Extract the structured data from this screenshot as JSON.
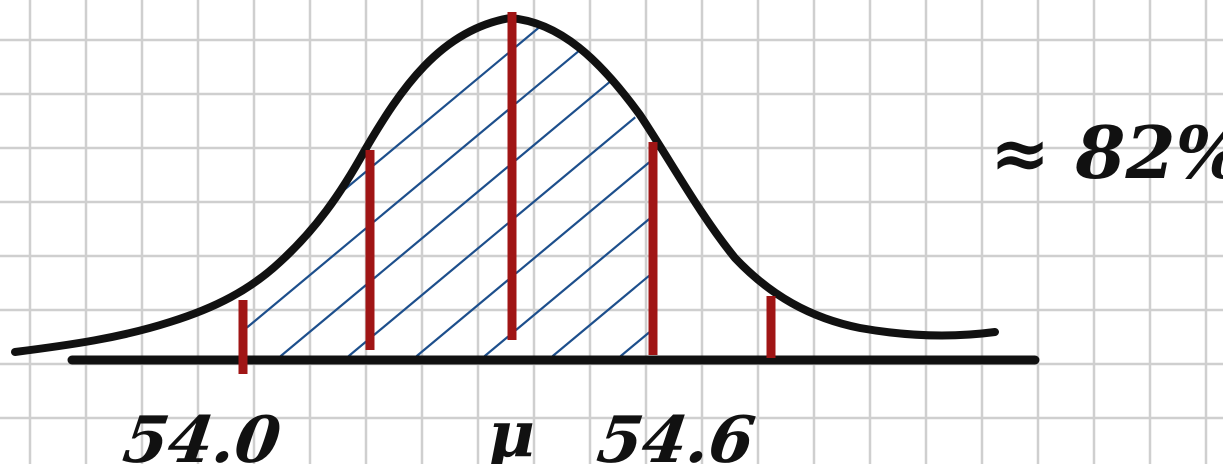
{
  "labels": {
    "lower_bound": "54.0",
    "mean": "μ",
    "upper_bound": "54.6",
    "area_result": "≈ 82%"
  },
  "colors": {
    "grid": "#cfcfcf",
    "curve": "#111111",
    "axis": "#111111",
    "marker": "#a01515",
    "hatch": "#1d4f8c"
  }
}
